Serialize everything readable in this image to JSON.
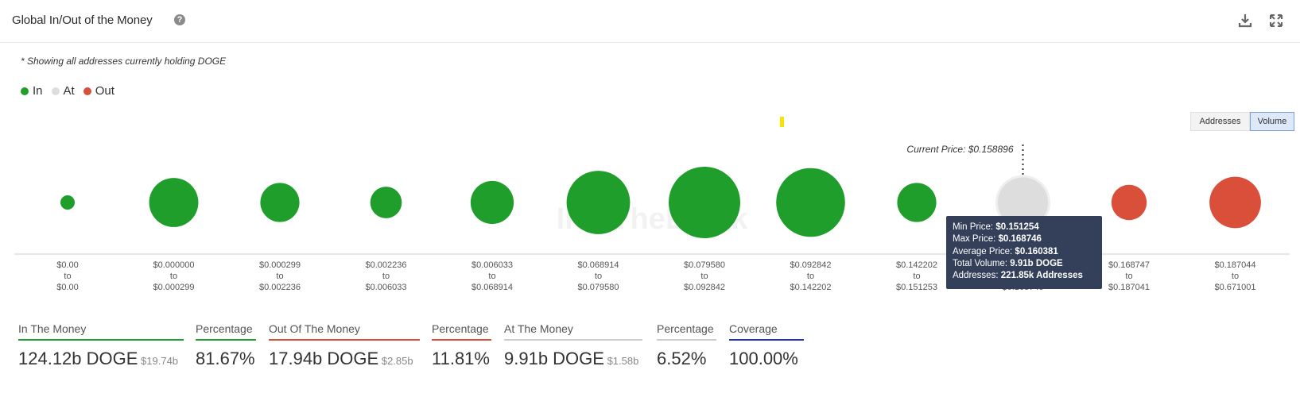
{
  "header": {
    "title": "Global In/Out of the Money",
    "help_glyph": "?"
  },
  "note": "* Showing all addresses currently holding DOGE",
  "legend": [
    {
      "label": "In",
      "color": "#1f9e2c"
    },
    {
      "label": "At",
      "color": "#dddddd"
    },
    {
      "label": "Out",
      "color": "#d94f3a"
    }
  ],
  "toggles": {
    "addresses": "Addresses",
    "volume": "Volume",
    "active": "Volume"
  },
  "watermark": "IntoTheBlock",
  "chart_data": {
    "type": "bubble",
    "current_price_label": "Current Price: $0.158896",
    "buckets": [
      {
        "from": "$0.00",
        "to": "$0.00",
        "status": "In",
        "volume_b": 0.6
      },
      {
        "from": "$0.000000",
        "to": "$0.000299",
        "status": "In",
        "volume_b": 9.5
      },
      {
        "from": "$0.000299",
        "to": "$0.002236",
        "status": "In",
        "volume_b": 6.0
      },
      {
        "from": "$0.002236",
        "to": "$0.006033",
        "status": "In",
        "volume_b": 3.9
      },
      {
        "from": "$0.006033",
        "to": "$0.068914",
        "status": "In",
        "volume_b": 7.3
      },
      {
        "from": "$0.068914",
        "to": "$0.079580",
        "status": "In",
        "volume_b": 15.8
      },
      {
        "from": "$0.079580",
        "to": "$0.092842",
        "status": "In",
        "volume_b": 20.1
      },
      {
        "from": "$0.092842",
        "to": "$0.142202",
        "status": "In",
        "volume_b": 18.6
      },
      {
        "from": "$0.142202",
        "to": "$0.151253",
        "status": "In",
        "volume_b": 6.0
      },
      {
        "from": "$0.151254",
        "to": "$0.168746",
        "status": "At",
        "volume_b": 9.91
      },
      {
        "from": "$0.168747",
        "to": "$0.187041",
        "status": "Out",
        "volume_b": 4.9
      },
      {
        "from": "$0.187044",
        "to": "$0.671001",
        "status": "Out",
        "volume_b": 10.4
      }
    ],
    "axis_to_word": "to"
  },
  "tooltip": {
    "rows": [
      {
        "label": "Min Price:",
        "value": "$0.151254"
      },
      {
        "label": "Max Price:",
        "value": "$0.168746"
      },
      {
        "label": "Average Price:",
        "value": "$0.160381"
      },
      {
        "label": "Total Volume:",
        "value": "9.91b DOGE"
      },
      {
        "label": "Addresses:",
        "value": "221.85k Addresses"
      }
    ]
  },
  "stats": [
    {
      "label": "In The Money",
      "value": "124.12b DOGE",
      "sub": "$19.74b",
      "color": "#1f9e2c"
    },
    {
      "label": "Percentage",
      "value": "81.67%",
      "sub": "",
      "color": "#1f9e2c"
    },
    {
      "label": "Out Of The Money",
      "value": "17.94b DOGE",
      "sub": "$2.85b",
      "color": "#d94f3a"
    },
    {
      "label": "Percentage",
      "value": "11.81%",
      "sub": "",
      "color": "#d94f3a"
    },
    {
      "label": "At The Money",
      "value": "9.91b DOGE",
      "sub": "$1.58b",
      "color": "#cccccc"
    },
    {
      "label": "Percentage",
      "value": "6.52%",
      "sub": "",
      "color": "#cccccc"
    },
    {
      "label": "Coverage",
      "value": "100.00%",
      "sub": "",
      "color": "#2233bb"
    }
  ]
}
